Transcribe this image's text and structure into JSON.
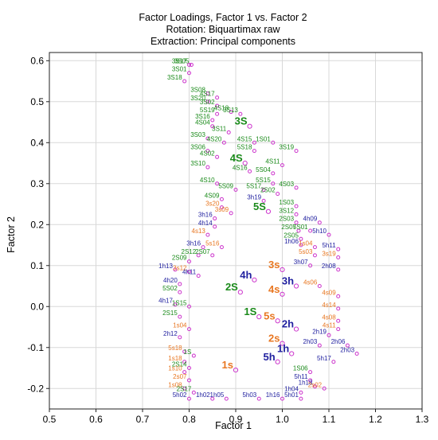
{
  "chart_data": {
    "type": "scatter",
    "title_lines": [
      "Factor Loadings, Factor 1 vs. Factor 2",
      "Rotation: Biquartimax raw",
      "Extraction: Principal components"
    ],
    "xlabel": "Factor 1",
    "ylabel": "Factor 2",
    "xlim": [
      0.5,
      1.3
    ],
    "ylim": [
      -0.25,
      0.62
    ],
    "x_ticks": [
      "0.5",
      "0.6",
      "0.7",
      "0.8",
      "0.9",
      "1.0",
      "1.1",
      "1.2",
      "1.3"
    ],
    "y_ticks": [
      "-0.2",
      "-0.1",
      "0.0",
      "0.1",
      "0.2",
      "0.3",
      "0.4",
      "0.5",
      "0.6"
    ],
    "x_tick_values": [
      0.5,
      0.6,
      0.7,
      0.8,
      0.9,
      1.0,
      1.1,
      1.2,
      1.3
    ],
    "y_tick_values": [
      -0.2,
      -0.1,
      0.0,
      0.1,
      0.2,
      0.3,
      0.4,
      0.5,
      0.6
    ],
    "grid": true,
    "colors": {
      "S_group": "#1a8a1a",
      "s_group": "#e87722",
      "h_group": "#2222a0",
      "marker": "#cc33cc",
      "grid": "#d8d8d8"
    },
    "points": [
      {
        "label": "3S17",
        "x": 0.8,
        "y": 0.59,
        "color": "S_group",
        "size": 8
      },
      {
        "label": "3S05",
        "x": 0.805,
        "y": 0.59,
        "color": "S_group",
        "size": 8
      },
      {
        "label": "3S01",
        "x": 0.8,
        "y": 0.57,
        "color": "S_group",
        "size": 8
      },
      {
        "label": "3S18",
        "x": 0.79,
        "y": 0.55,
        "color": "S_group",
        "size": 8
      },
      {
        "label": "3S08",
        "x": 0.84,
        "y": 0.52,
        "color": "S_group",
        "size": 8
      },
      {
        "label": "4S17",
        "x": 0.86,
        "y": 0.51,
        "color": "S_group",
        "size": 8
      },
      {
        "label": "3S20",
        "x": 0.84,
        "y": 0.5,
        "color": "S_group",
        "size": 8
      },
      {
        "label": "3S02",
        "x": 0.86,
        "y": 0.49,
        "color": "S_group",
        "size": 8
      },
      {
        "label": "4S18",
        "x": 0.89,
        "y": 0.475,
        "color": "S_group",
        "size": 8
      },
      {
        "label": "3S13",
        "x": 0.91,
        "y": 0.47,
        "color": "S_group",
        "size": 8
      },
      {
        "label": "5S19",
        "x": 0.86,
        "y": 0.47,
        "color": "S_group",
        "size": 8
      },
      {
        "label": "3S16",
        "x": 0.85,
        "y": 0.455,
        "color": "S_group",
        "size": 8
      },
      {
        "label": "3S",
        "x": 0.93,
        "y": 0.44,
        "color": "S_group",
        "size": 13
      },
      {
        "label": "4S04",
        "x": 0.85,
        "y": 0.44,
        "color": "S_group",
        "size": 8
      },
      {
        "label": "3S11",
        "x": 0.885,
        "y": 0.425,
        "color": "S_group",
        "size": 8
      },
      {
        "label": "3S03",
        "x": 0.84,
        "y": 0.41,
        "color": "S_group",
        "size": 8
      },
      {
        "label": "4S20",
        "x": 0.875,
        "y": 0.4,
        "color": "S_group",
        "size": 8
      },
      {
        "label": "4S15",
        "x": 0.94,
        "y": 0.4,
        "color": "S_group",
        "size": 8
      },
      {
        "label": "1S01",
        "x": 0.98,
        "y": 0.4,
        "color": "S_group",
        "size": 8
      },
      {
        "label": "3S06",
        "x": 0.84,
        "y": 0.38,
        "color": "S_group",
        "size": 8
      },
      {
        "label": "5S18",
        "x": 0.94,
        "y": 0.38,
        "color": "S_group",
        "size": 8
      },
      {
        "label": "3S19",
        "x": 1.03,
        "y": 0.38,
        "color": "S_group",
        "size": 8
      },
      {
        "label": "4S02",
        "x": 0.86,
        "y": 0.365,
        "color": "S_group",
        "size": 8
      },
      {
        "label": "4S",
        "x": 0.92,
        "y": 0.35,
        "color": "S_group",
        "size": 13
      },
      {
        "label": "4S11",
        "x": 1.0,
        "y": 0.345,
        "color": "S_group",
        "size": 8
      },
      {
        "label": "3S10",
        "x": 0.84,
        "y": 0.34,
        "color": "S_group",
        "size": 8
      },
      {
        "label": "4S16",
        "x": 0.93,
        "y": 0.33,
        "color": "S_group",
        "size": 8
      },
      {
        "label": "5S04",
        "x": 0.98,
        "y": 0.325,
        "color": "S_group",
        "size": 8
      },
      {
        "label": "4S10",
        "x": 0.86,
        "y": 0.3,
        "color": "S_group",
        "size": 8
      },
      {
        "label": "5S15",
        "x": 0.98,
        "y": 0.3,
        "color": "S_group",
        "size": 8
      },
      {
        "label": "4S03",
        "x": 1.03,
        "y": 0.29,
        "color": "S_group",
        "size": 8
      },
      {
        "label": "5S09",
        "x": 0.9,
        "y": 0.285,
        "color": "S_group",
        "size": 8
      },
      {
        "label": "5S17",
        "x": 0.96,
        "y": 0.285,
        "color": "S_group",
        "size": 8
      },
      {
        "label": "2S02",
        "x": 0.99,
        "y": 0.275,
        "color": "S_group",
        "size": 8
      },
      {
        "label": "4S09",
        "x": 0.87,
        "y": 0.262,
        "color": "S_group",
        "size": 8
      },
      {
        "label": "3h19",
        "x": 0.96,
        "y": 0.258,
        "color": "h_group",
        "size": 8
      },
      {
        "label": "1S03",
        "x": 1.03,
        "y": 0.245,
        "color": "S_group",
        "size": 8
      },
      {
        "label": "3s20",
        "x": 0.87,
        "y": 0.242,
        "color": "s_group",
        "size": 8
      },
      {
        "label": "5S",
        "x": 0.97,
        "y": 0.232,
        "color": "S_group",
        "size": 13
      },
      {
        "label": "3S12",
        "x": 1.03,
        "y": 0.225,
        "color": "S_group",
        "size": 8
      },
      {
        "label": "3s09",
        "x": 0.89,
        "y": 0.228,
        "color": "s_group",
        "size": 8
      },
      {
        "label": "3h16",
        "x": 0.855,
        "y": 0.215,
        "color": "h_group",
        "size": 8
      },
      {
        "label": "4h14",
        "x": 0.855,
        "y": 0.195,
        "color": "h_group",
        "size": 8
      },
      {
        "label": "2S03",
        "x": 1.03,
        "y": 0.205,
        "color": "S_group",
        "size": 8
      },
      {
        "label": "4h09",
        "x": 1.08,
        "y": 0.205,
        "color": "h_group",
        "size": 8
      },
      {
        "label": "4s13",
        "x": 0.84,
        "y": 0.175,
        "color": "s_group",
        "size": 8
      },
      {
        "label": "2S07",
        "x": 1.035,
        "y": 0.185,
        "color": "S_group",
        "size": 8
      },
      {
        "label": "5S01",
        "x": 1.06,
        "y": 0.185,
        "color": "S_group",
        "size": 8
      },
      {
        "label": "5h10",
        "x": 1.1,
        "y": 0.175,
        "color": "h_group",
        "size": 8
      },
      {
        "label": "2S05",
        "x": 1.04,
        "y": 0.165,
        "color": "S_group",
        "size": 8
      },
      {
        "label": "3h16",
        "x": 0.83,
        "y": 0.145,
        "color": "h_group",
        "size": 8
      },
      {
        "label": "5s16",
        "x": 0.87,
        "y": 0.145,
        "color": "s_group",
        "size": 8
      },
      {
        "label": "1h06",
        "x": 1.04,
        "y": 0.15,
        "color": "h_group",
        "size": 8
      },
      {
        "label": "1s04",
        "x": 1.07,
        "y": 0.145,
        "color": "s_group",
        "size": 8
      },
      {
        "label": "5h11",
        "x": 1.12,
        "y": 0.14,
        "color": "h_group",
        "size": 8
      },
      {
        "label": "2S12",
        "x": 0.82,
        "y": 0.125,
        "color": "S_group",
        "size": 8
      },
      {
        "label": "2S07",
        "x": 0.85,
        "y": 0.125,
        "color": "S_group",
        "size": 8
      },
      {
        "label": "5s03",
        "x": 1.07,
        "y": 0.125,
        "color": "s_group",
        "size": 8
      },
      {
        "label": "3s19",
        "x": 1.12,
        "y": 0.12,
        "color": "s_group",
        "size": 8
      },
      {
        "label": "2S09",
        "x": 0.8,
        "y": 0.11,
        "color": "S_group",
        "size": 8
      },
      {
        "label": "3h07",
        "x": 1.06,
        "y": 0.1,
        "color": "h_group",
        "size": 8
      },
      {
        "label": "1h13",
        "x": 0.77,
        "y": 0.09,
        "color": "h_group",
        "size": 8
      },
      {
        "label": "3s12",
        "x": 0.8,
        "y": 0.085,
        "color": "s_group",
        "size": 8
      },
      {
        "label": "3s",
        "x": 1.0,
        "y": 0.09,
        "color": "s_group",
        "size": 13
      },
      {
        "label": "2h08",
        "x": 1.12,
        "y": 0.09,
        "color": "h_group",
        "size": 8
      },
      {
        "label": "4h11",
        "x": 0.82,
        "y": 0.075,
        "color": "h_group",
        "size": 8
      },
      {
        "label": "4h",
        "x": 0.94,
        "y": 0.065,
        "color": "h_group",
        "size": 13
      },
      {
        "label": "4h20",
        "x": 0.78,
        "y": 0.055,
        "color": "h_group",
        "size": 8
      },
      {
        "label": "3h",
        "x": 1.03,
        "y": 0.05,
        "color": "h_group",
        "size": 13
      },
      {
        "label": "4s06",
        "x": 1.08,
        "y": 0.05,
        "color": "s_group",
        "size": 8
      },
      {
        "label": "2S",
        "x": 0.91,
        "y": 0.035,
        "color": "S_group",
        "size": 13
      },
      {
        "label": "4s",
        "x": 1.0,
        "y": 0.03,
        "color": "s_group",
        "size": 13
      },
      {
        "label": "5S02",
        "x": 0.78,
        "y": 0.035,
        "color": "S_group",
        "size": 8
      },
      {
        "label": "4s09",
        "x": 1.12,
        "y": 0.025,
        "color": "s_group",
        "size": 8
      },
      {
        "label": "4h17",
        "x": 0.77,
        "y": 0.005,
        "color": "h_group",
        "size": 8
      },
      {
        "label": "1S15",
        "x": 0.8,
        "y": 0.0,
        "color": "S_group",
        "size": 8
      },
      {
        "label": "4s14",
        "x": 1.12,
        "y": -0.005,
        "color": "s_group",
        "size": 8
      },
      {
        "label": "2S15",
        "x": 0.78,
        "y": -0.025,
        "color": "S_group",
        "size": 8
      },
      {
        "label": "1S",
        "x": 0.95,
        "y": -0.025,
        "color": "S_group",
        "size": 13
      },
      {
        "label": "4s08",
        "x": 1.12,
        "y": -0.035,
        "color": "s_group",
        "size": 8
      },
      {
        "label": "5s",
        "x": 0.99,
        "y": -0.035,
        "color": "s_group",
        "size": 13
      },
      {
        "label": "1s04",
        "x": 0.8,
        "y": -0.055,
        "color": "s_group",
        "size": 8
      },
      {
        "label": "2h",
        "x": 1.03,
        "y": -0.055,
        "color": "h_group",
        "size": 13
      },
      {
        "label": "4s11",
        "x": 1.12,
        "y": -0.055,
        "color": "s_group",
        "size": 8
      },
      {
        "label": "2h12",
        "x": 0.78,
        "y": -0.075,
        "color": "h_group",
        "size": 8
      },
      {
        "label": "2h19",
        "x": 1.1,
        "y": -0.07,
        "color": "h_group",
        "size": 8
      },
      {
        "label": "2s",
        "x": 1.0,
        "y": -0.09,
        "color": "s_group",
        "size": 13
      },
      {
        "label": "2h03",
        "x": 1.08,
        "y": -0.095,
        "color": "h_group",
        "size": 8
      },
      {
        "label": "2h06",
        "x": 1.14,
        "y": -0.095,
        "color": "h_group",
        "size": 8
      },
      {
        "label": "5s18",
        "x": 0.79,
        "y": -0.11,
        "color": "s_group",
        "size": 8
      },
      {
        "label": "1h",
        "x": 1.02,
        "y": -0.115,
        "color": "h_group",
        "size": 13
      },
      {
        "label": "2h03",
        "x": 1.16,
        "y": -0.115,
        "color": "h_group",
        "size": 8
      },
      {
        "label": "1S",
        "x": 0.81,
        "y": -0.12,
        "color": "S_group",
        "size": 8
      },
      {
        "label": "1s18",
        "x": 0.79,
        "y": -0.135,
        "color": "s_group",
        "size": 8
      },
      {
        "label": "5h",
        "x": 0.99,
        "y": -0.135,
        "color": "h_group",
        "size": 13
      },
      {
        "label": "5h17",
        "x": 1.11,
        "y": -0.135,
        "color": "h_group",
        "size": 8
      },
      {
        "label": "2S14",
        "x": 0.8,
        "y": -0.15,
        "color": "S_group",
        "size": 8
      },
      {
        "label": "1s",
        "x": 0.9,
        "y": -0.155,
        "color": "s_group",
        "size": 13
      },
      {
        "label": "1S06",
        "x": 1.06,
        "y": -0.16,
        "color": "S_group",
        "size": 8
      },
      {
        "label": "1s10",
        "x": 0.79,
        "y": -0.16,
        "color": "s_group",
        "size": 8
      },
      {
        "label": "2s07",
        "x": 0.8,
        "y": -0.18,
        "color": "s_group",
        "size": 8
      },
      {
        "label": "5h11",
        "x": 1.06,
        "y": -0.18,
        "color": "h_group",
        "size": 8
      },
      {
        "label": "1s08",
        "x": 0.79,
        "y": -0.2,
        "color": "s_group",
        "size": 8
      },
      {
        "label": "1h18",
        "x": 1.07,
        "y": -0.195,
        "color": "h_group",
        "size": 8
      },
      {
        "label": "2s02",
        "x": 1.09,
        "y": -0.2,
        "color": "s_group",
        "size": 8
      },
      {
        "label": "2S17",
        "x": 0.81,
        "y": -0.21,
        "color": "S_group",
        "size": 8
      },
      {
        "label": "1h04",
        "x": 1.04,
        "y": -0.21,
        "color": "h_group",
        "size": 8
      },
      {
        "label": "5h02",
        "x": 0.8,
        "y": -0.225,
        "color": "h_group",
        "size": 8
      },
      {
        "label": "1h02",
        "x": 0.85,
        "y": -0.225,
        "color": "h_group",
        "size": 8
      },
      {
        "label": "1h05",
        "x": 0.88,
        "y": -0.225,
        "color": "h_group",
        "size": 8
      },
      {
        "label": "5h03",
        "x": 0.95,
        "y": -0.225,
        "color": "h_group",
        "size": 8
      },
      {
        "label": "1h16",
        "x": 1.0,
        "y": -0.225,
        "color": "h_group",
        "size": 8
      },
      {
        "label": "5h01",
        "x": 1.04,
        "y": -0.225,
        "color": "h_group",
        "size": 8
      }
    ]
  }
}
